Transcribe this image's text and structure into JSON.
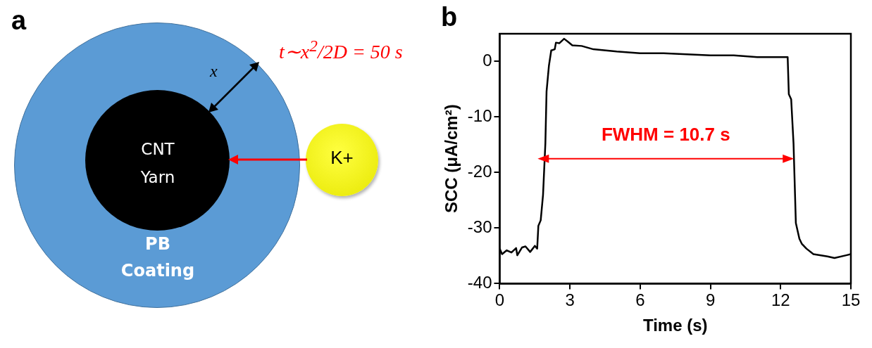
{
  "chart_data": [
    {
      "type": "other",
      "title": "a",
      "annotations": [
        "CNT\nYarn",
        "PB\nCoating",
        "K+",
        "x",
        "t∼x$^{2}$/2D = 50 s"
      ]
    },
    {
      "type": "line",
      "title": "b",
      "xlabel": "Time (s)",
      "ylabel": "SCC (μA/cm²)",
      "marker": "none",
      "annotations": [
        "FWHM = 10.7 s"
      ],
      "xlim": [
        0,
        15
      ],
      "xticks": [
        0,
        3,
        6,
        9,
        12,
        15
      ],
      "ylim": [
        -40,
        5
      ],
      "yticks": [
        -40,
        -30,
        -20,
        -10,
        0
      ],
      "x": [
        0,
        0.1,
        0.3,
        0.5,
        0.7,
        0.75,
        0.95,
        1.1,
        1.3,
        1.5,
        1.6,
        1.65,
        1.75,
        1.85,
        1.95,
        2.0,
        2.1,
        2.2,
        2.35,
        2.4,
        2.55,
        2.75,
        2.9,
        3.1,
        3.5,
        4,
        5,
        6,
        7,
        8,
        9,
        10,
        11,
        12,
        12.3,
        12.35,
        12.45,
        12.55,
        12.65,
        12.8,
        12.9,
        13.1,
        13.4,
        14,
        14.3,
        14.8,
        15
      ],
      "series": [
        {
          "color": "#000000",
          "values": [
            -33.7,
            -34.7,
            -34,
            -34.4,
            -33.6,
            -34.9,
            -33.5,
            -33.3,
            -34.3,
            -33.2,
            -33.7,
            -29.6,
            -28.6,
            -24,
            -14.7,
            -5.4,
            -0.8,
            2,
            2.2,
            3.4,
            3.3,
            4.1,
            3.6,
            2.9,
            2.8,
            2.2,
            1.8,
            1.5,
            1.5,
            1.3,
            1.1,
            1.1,
            0.8,
            0.8,
            0.8,
            -5.9,
            -6.8,
            -14.7,
            -29.1,
            -31.9,
            -32.8,
            -33.7,
            -34.7,
            -35.1,
            -35.4,
            -34.9,
            -34.7
          ]
        }
      ]
    }
  ]
}
